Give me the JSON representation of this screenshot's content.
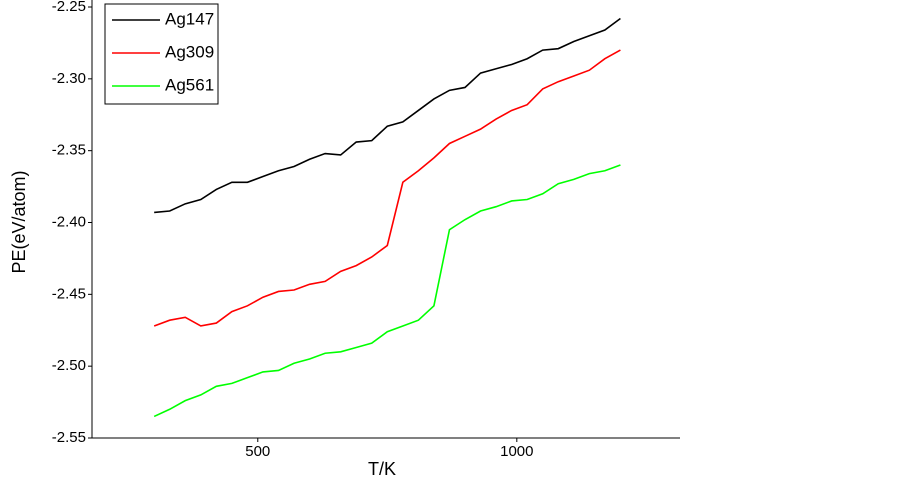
{
  "chart_data": {
    "type": "line",
    "x_label": "T/K",
    "y_label": "PE(eV/atom)",
    "x": [
      300,
      330,
      360,
      390,
      420,
      450,
      480,
      510,
      540,
      570,
      600,
      630,
      660,
      690,
      720,
      750,
      780,
      810,
      840,
      870,
      900,
      930,
      960,
      990,
      1020,
      1050,
      1080,
      1110,
      1140,
      1170,
      1200
    ],
    "series": [
      {
        "name": "Ag147",
        "color": "#000000",
        "values": [
          -2.393,
          -2.392,
          -2.387,
          -2.384,
          -2.377,
          -2.372,
          -2.372,
          -2.368,
          -2.364,
          -2.361,
          -2.356,
          -2.352,
          -2.353,
          -2.344,
          -2.343,
          -2.333,
          -2.33,
          -2.322,
          -2.314,
          -2.308,
          -2.306,
          -2.296,
          -2.293,
          -2.29,
          -2.286,
          -2.28,
          -2.279,
          -2.274,
          -2.27,
          -2.266,
          -2.258
        ]
      },
      {
        "name": "Ag309",
        "color": "#ff0000",
        "values": [
          -2.472,
          -2.468,
          -2.466,
          -2.472,
          -2.47,
          -2.462,
          -2.458,
          -2.452,
          -2.448,
          -2.447,
          -2.443,
          -2.441,
          -2.434,
          -2.43,
          -2.424,
          -2.416,
          -2.372,
          -2.364,
          -2.355,
          -2.345,
          -2.34,
          -2.335,
          -2.328,
          -2.322,
          -2.318,
          -2.307,
          -2.302,
          -2.298,
          -2.294,
          -2.286,
          -2.28
        ]
      },
      {
        "name": "Ag561",
        "color": "#00ff00",
        "values": [
          -2.535,
          -2.53,
          -2.524,
          -2.52,
          -2.514,
          -2.512,
          -2.508,
          -2.504,
          -2.503,
          -2.498,
          -2.495,
          -2.491,
          -2.49,
          -2.487,
          -2.484,
          -2.476,
          -2.472,
          -2.468,
          -2.458,
          -2.405,
          -2.398,
          -2.392,
          -2.389,
          -2.385,
          -2.384,
          -2.38,
          -2.373,
          -2.37,
          -2.366,
          -2.364,
          -2.36
        ]
      }
    ],
    "xlim": [
      180,
      1315
    ],
    "xticks": [
      500,
      1000
    ],
    "ylim": [
      -2.55,
      -2.25
    ],
    "yticks": [
      -2.55,
      {
        "value": -2.5,
        "label": "-2.50"
      },
      -2.45,
      {
        "value": -2.4,
        "label": "-2.40"
      },
      -2.35,
      {
        "value": -2.3,
        "label": "-2.30"
      },
      -2.25
    ]
  }
}
